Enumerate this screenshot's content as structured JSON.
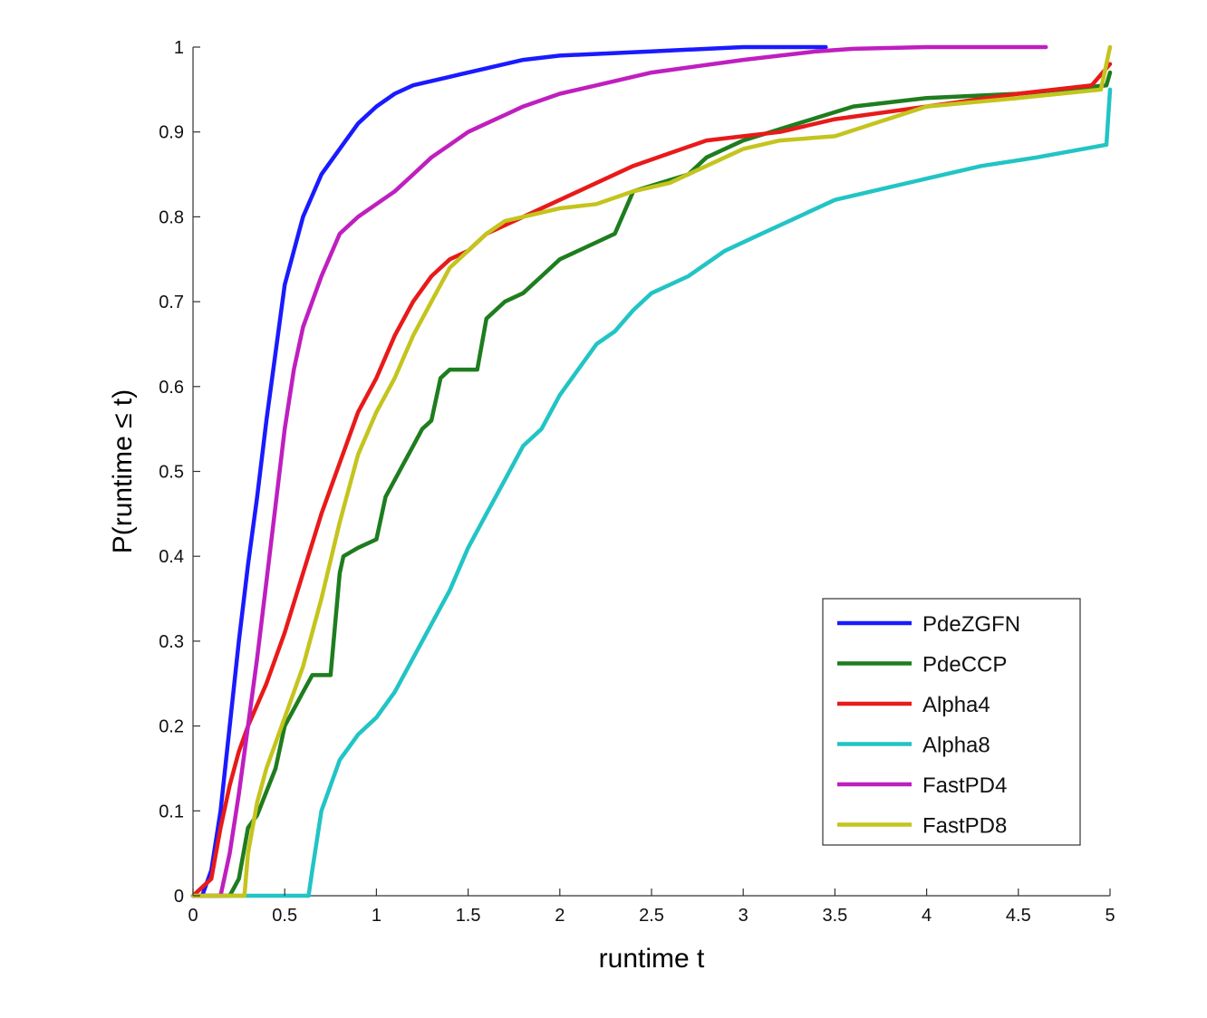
{
  "chart_data": {
    "type": "line",
    "title": "",
    "xlabel": "runtime t",
    "ylabel": "P(runtime ≤ t)",
    "xlim": [
      0,
      5
    ],
    "ylim": [
      0,
      1
    ],
    "xticks": [
      0,
      0.5,
      1,
      1.5,
      2,
      2.5,
      3,
      3.5,
      4,
      4.5,
      5
    ],
    "xtick_labels": [
      "0",
      "0.5",
      "1",
      "1.5",
      "2",
      "2.5",
      "3",
      "3.5",
      "4",
      "4.5",
      "5"
    ],
    "yticks": [
      0,
      0.1,
      0.2,
      0.3,
      0.4,
      0.5,
      0.6,
      0.7,
      0.8,
      0.9,
      1
    ],
    "ytick_labels": [
      "0",
      "0.1",
      "0.2",
      "0.3",
      "0.4",
      "0.5",
      "0.6",
      "0.7",
      "0.8",
      "0.9",
      "1"
    ],
    "grid": false,
    "legend_position": "bottom-right",
    "series": [
      {
        "name": "PdeZGFN",
        "color": "#1a1aff",
        "points": [
          [
            0,
            0
          ],
          [
            0.05,
            0
          ],
          [
            0.1,
            0.03
          ],
          [
            0.15,
            0.1
          ],
          [
            0.2,
            0.2
          ],
          [
            0.25,
            0.3
          ],
          [
            0.3,
            0.39
          ],
          [
            0.35,
            0.47
          ],
          [
            0.4,
            0.56
          ],
          [
            0.45,
            0.64
          ],
          [
            0.5,
            0.72
          ],
          [
            0.55,
            0.76
          ],
          [
            0.6,
            0.8
          ],
          [
            0.7,
            0.85
          ],
          [
            0.8,
            0.88
          ],
          [
            0.9,
            0.91
          ],
          [
            1.0,
            0.93
          ],
          [
            1.1,
            0.945
          ],
          [
            1.2,
            0.955
          ],
          [
            1.4,
            0.965
          ],
          [
            1.6,
            0.975
          ],
          [
            1.8,
            0.985
          ],
          [
            2.0,
            0.99
          ],
          [
            2.5,
            0.995
          ],
          [
            3.0,
            1.0
          ],
          [
            3.45,
            1.0
          ]
        ]
      },
      {
        "name": "PdeCCP",
        "color": "#1e7d1e",
        "points": [
          [
            0,
            0
          ],
          [
            0.2,
            0
          ],
          [
            0.25,
            0.02
          ],
          [
            0.3,
            0.08
          ],
          [
            0.35,
            0.095
          ],
          [
            0.45,
            0.15
          ],
          [
            0.5,
            0.2
          ],
          [
            0.55,
            0.22
          ],
          [
            0.6,
            0.24
          ],
          [
            0.65,
            0.26
          ],
          [
            0.75,
            0.26
          ],
          [
            0.8,
            0.38
          ],
          [
            0.82,
            0.4
          ],
          [
            0.9,
            0.41
          ],
          [
            1.0,
            0.42
          ],
          [
            1.05,
            0.47
          ],
          [
            1.1,
            0.49
          ],
          [
            1.2,
            0.53
          ],
          [
            1.25,
            0.55
          ],
          [
            1.3,
            0.56
          ],
          [
            1.35,
            0.61
          ],
          [
            1.4,
            0.62
          ],
          [
            1.55,
            0.62
          ],
          [
            1.6,
            0.68
          ],
          [
            1.7,
            0.7
          ],
          [
            1.8,
            0.71
          ],
          [
            1.9,
            0.73
          ],
          [
            2.0,
            0.75
          ],
          [
            2.2,
            0.77
          ],
          [
            2.3,
            0.78
          ],
          [
            2.4,
            0.83
          ],
          [
            2.55,
            0.84
          ],
          [
            2.7,
            0.85
          ],
          [
            2.8,
            0.87
          ],
          [
            3.0,
            0.89
          ],
          [
            3.3,
            0.91
          ],
          [
            3.6,
            0.93
          ],
          [
            4.0,
            0.94
          ],
          [
            4.5,
            0.945
          ],
          [
            4.98,
            0.955
          ],
          [
            5.0,
            0.97
          ]
        ]
      },
      {
        "name": "Alpha4",
        "color": "#e81a1a",
        "points": [
          [
            0,
            0
          ],
          [
            0.1,
            0.02
          ],
          [
            0.15,
            0.08
          ],
          [
            0.2,
            0.13
          ],
          [
            0.25,
            0.17
          ],
          [
            0.3,
            0.2
          ],
          [
            0.4,
            0.25
          ],
          [
            0.5,
            0.31
          ],
          [
            0.6,
            0.38
          ],
          [
            0.7,
            0.45
          ],
          [
            0.8,
            0.51
          ],
          [
            0.9,
            0.57
          ],
          [
            1.0,
            0.61
          ],
          [
            1.1,
            0.66
          ],
          [
            1.2,
            0.7
          ],
          [
            1.3,
            0.73
          ],
          [
            1.4,
            0.75
          ],
          [
            1.5,
            0.76
          ],
          [
            1.6,
            0.78
          ],
          [
            1.8,
            0.8
          ],
          [
            2.0,
            0.82
          ],
          [
            2.2,
            0.84
          ],
          [
            2.4,
            0.86
          ],
          [
            2.6,
            0.875
          ],
          [
            2.8,
            0.89
          ],
          [
            3.0,
            0.895
          ],
          [
            3.2,
            0.9
          ],
          [
            3.5,
            0.915
          ],
          [
            4.0,
            0.93
          ],
          [
            4.5,
            0.945
          ],
          [
            4.9,
            0.955
          ],
          [
            5.0,
            0.98
          ]
        ]
      },
      {
        "name": "Alpha8",
        "color": "#22c4c4",
        "points": [
          [
            0,
            0
          ],
          [
            0.63,
            0
          ],
          [
            0.65,
            0.03
          ],
          [
            0.7,
            0.1
          ],
          [
            0.8,
            0.16
          ],
          [
            0.9,
            0.19
          ],
          [
            1.0,
            0.21
          ],
          [
            1.1,
            0.24
          ],
          [
            1.2,
            0.28
          ],
          [
            1.3,
            0.32
          ],
          [
            1.4,
            0.36
          ],
          [
            1.5,
            0.41
          ],
          [
            1.6,
            0.45
          ],
          [
            1.7,
            0.49
          ],
          [
            1.8,
            0.53
          ],
          [
            1.9,
            0.55
          ],
          [
            2.0,
            0.59
          ],
          [
            2.1,
            0.62
          ],
          [
            2.2,
            0.65
          ],
          [
            2.3,
            0.665
          ],
          [
            2.4,
            0.69
          ],
          [
            2.5,
            0.71
          ],
          [
            2.7,
            0.73
          ],
          [
            2.9,
            0.76
          ],
          [
            3.1,
            0.78
          ],
          [
            3.3,
            0.8
          ],
          [
            3.5,
            0.82
          ],
          [
            3.8,
            0.835
          ],
          [
            4.0,
            0.845
          ],
          [
            4.3,
            0.86
          ],
          [
            4.6,
            0.87
          ],
          [
            4.98,
            0.885
          ],
          [
            5.0,
            0.95
          ]
        ]
      },
      {
        "name": "FastPD4",
        "color": "#bf1fbf",
        "points": [
          [
            0,
            0
          ],
          [
            0.15,
            0
          ],
          [
            0.2,
            0.05
          ],
          [
            0.25,
            0.12
          ],
          [
            0.3,
            0.2
          ],
          [
            0.35,
            0.28
          ],
          [
            0.4,
            0.37
          ],
          [
            0.45,
            0.46
          ],
          [
            0.5,
            0.55
          ],
          [
            0.55,
            0.62
          ],
          [
            0.6,
            0.67
          ],
          [
            0.7,
            0.73
          ],
          [
            0.8,
            0.78
          ],
          [
            0.9,
            0.8
          ],
          [
            1.0,
            0.815
          ],
          [
            1.1,
            0.83
          ],
          [
            1.2,
            0.85
          ],
          [
            1.3,
            0.87
          ],
          [
            1.4,
            0.885
          ],
          [
            1.5,
            0.9
          ],
          [
            1.6,
            0.91
          ],
          [
            1.7,
            0.92
          ],
          [
            1.8,
            0.93
          ],
          [
            2.0,
            0.945
          ],
          [
            2.2,
            0.955
          ],
          [
            2.5,
            0.97
          ],
          [
            3.0,
            0.985
          ],
          [
            3.4,
            0.995
          ],
          [
            3.6,
            0.998
          ],
          [
            4.0,
            1.0
          ],
          [
            4.65,
            1.0
          ]
        ]
      },
      {
        "name": "FastPD8",
        "color": "#c4c41e",
        "points": [
          [
            0,
            0
          ],
          [
            0.28,
            0
          ],
          [
            0.3,
            0.05
          ],
          [
            0.35,
            0.11
          ],
          [
            0.4,
            0.15
          ],
          [
            0.5,
            0.21
          ],
          [
            0.6,
            0.27
          ],
          [
            0.7,
            0.35
          ],
          [
            0.8,
            0.44
          ],
          [
            0.9,
            0.52
          ],
          [
            1.0,
            0.57
          ],
          [
            1.1,
            0.61
          ],
          [
            1.2,
            0.66
          ],
          [
            1.3,
            0.7
          ],
          [
            1.4,
            0.74
          ],
          [
            1.5,
            0.76
          ],
          [
            1.6,
            0.78
          ],
          [
            1.7,
            0.795
          ],
          [
            1.8,
            0.8
          ],
          [
            2.0,
            0.81
          ],
          [
            2.2,
            0.815
          ],
          [
            2.4,
            0.83
          ],
          [
            2.6,
            0.84
          ],
          [
            2.8,
            0.86
          ],
          [
            3.0,
            0.88
          ],
          [
            3.2,
            0.89
          ],
          [
            3.5,
            0.895
          ],
          [
            4.0,
            0.93
          ],
          [
            4.5,
            0.94
          ],
          [
            4.95,
            0.95
          ],
          [
            5.0,
            1.0
          ]
        ]
      }
    ]
  }
}
